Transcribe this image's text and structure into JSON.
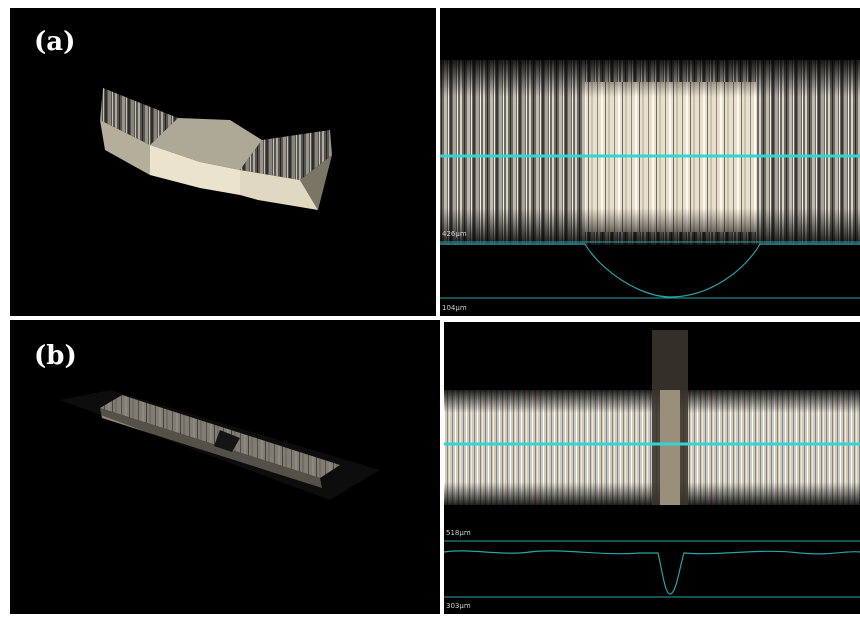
{
  "panels": [
    {
      "label": "(a)",
      "scale_top": "426µm",
      "scale_bottom": "104µm"
    },
    {
      "label": "(b)",
      "scale_top": "518µm",
      "scale_bottom": "303µm"
    }
  ]
}
